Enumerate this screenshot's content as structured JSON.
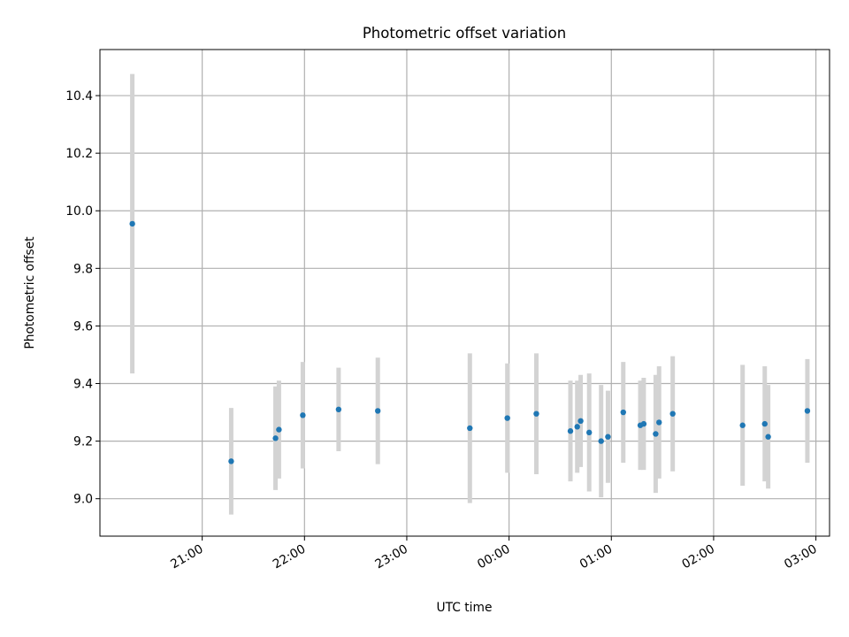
{
  "chart_data": {
    "type": "scatter",
    "title": "Photometric offset variation",
    "xlabel": "UTC time",
    "ylabel": "Photometric offset",
    "x_axis": {
      "kind": "time",
      "xlim": [
        "20:00",
        "03:08"
      ],
      "ticks": [
        "21:00",
        "22:00",
        "23:00",
        "00:00",
        "01:00",
        "02:00",
        "03:00"
      ],
      "tick_rotation_deg": 30
    },
    "y_axis": {
      "ylim": [
        8.87,
        10.56
      ],
      "ticks": [
        "9.0",
        "9.2",
        "9.4",
        "9.6",
        "9.8",
        "10.0",
        "10.2",
        "10.4"
      ]
    },
    "grid": true,
    "colors": {
      "point": "#1f77b4",
      "errorbar": "#d3d3d3",
      "grid": "#b0b0b0"
    },
    "points": [
      {
        "time": "20:19",
        "y": 9.955,
        "err": 0.52
      },
      {
        "time": "21:17",
        "y": 9.13,
        "err": 0.185
      },
      {
        "time": "21:43",
        "y": 9.21,
        "err": 0.18
      },
      {
        "time": "21:45",
        "y": 9.24,
        "err": 0.17
      },
      {
        "time": "21:59",
        "y": 9.29,
        "err": 0.185
      },
      {
        "time": "22:20",
        "y": 9.31,
        "err": 0.145
      },
      {
        "time": "22:43",
        "y": 9.305,
        "err": 0.185
      },
      {
        "time": "23:37",
        "y": 9.245,
        "err": 0.26
      },
      {
        "time": "23:59",
        "y": 9.28,
        "err": 0.19
      },
      {
        "time": "00:16",
        "y": 9.295,
        "err": 0.21
      },
      {
        "time": "00:36",
        "y": 9.235,
        "err": 0.175
      },
      {
        "time": "00:40",
        "y": 9.25,
        "err": 0.16
      },
      {
        "time": "00:42",
        "y": 9.27,
        "err": 0.16
      },
      {
        "time": "00:47",
        "y": 9.23,
        "err": 0.205
      },
      {
        "time": "00:54",
        "y": 9.2,
        "err": 0.195
      },
      {
        "time": "00:58",
        "y": 9.215,
        "err": 0.16
      },
      {
        "time": "01:07",
        "y": 9.3,
        "err": 0.175
      },
      {
        "time": "01:17",
        "y": 9.255,
        "err": 0.155
      },
      {
        "time": "01:19",
        "y": 9.26,
        "err": 0.16
      },
      {
        "time": "01:26",
        "y": 9.225,
        "err": 0.205
      },
      {
        "time": "01:28",
        "y": 9.265,
        "err": 0.195
      },
      {
        "time": "01:36",
        "y": 9.295,
        "err": 0.2
      },
      {
        "time": "02:17",
        "y": 9.255,
        "err": 0.21
      },
      {
        "time": "02:30",
        "y": 9.26,
        "err": 0.2
      },
      {
        "time": "02:32",
        "y": 9.215,
        "err": 0.18
      },
      {
        "time": "02:55",
        "y": 9.305,
        "err": 0.18
      }
    ]
  }
}
